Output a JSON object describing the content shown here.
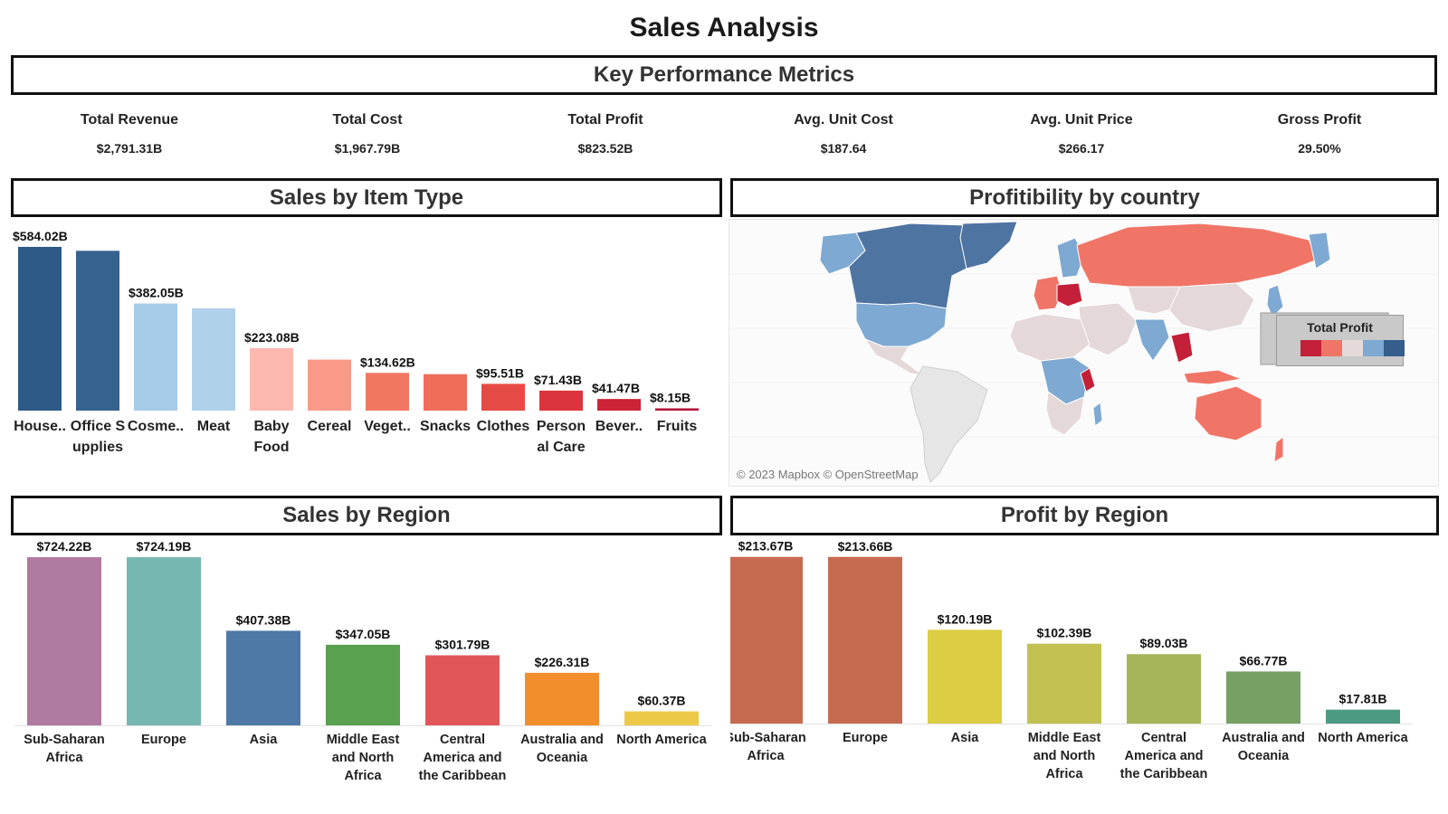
{
  "dashboard": {
    "title": "Sales Analysis"
  },
  "kpi_section": {
    "title": "Key Performance Metrics"
  },
  "kpis": [
    {
      "label": "Total Revenue",
      "value": "$2,791.31B"
    },
    {
      "label": "Total Cost",
      "value": "$1,967.79B"
    },
    {
      "label": "Total Profit",
      "value": "$823.52B"
    },
    {
      "label": "Avg. Unit Cost",
      "value": "$187.64"
    },
    {
      "label": "Avg. Unit Price",
      "value": "$266.17"
    },
    {
      "label": "Gross Profit",
      "value": "29.50%"
    }
  ],
  "map": {
    "title": "Profitibility by country",
    "legend_title": "Total Profit",
    "legend_colors": [
      "#c4203a",
      "#f07567",
      "#e5dad9",
      "#7ea9d2",
      "#355e8c"
    ],
    "credit": "© 2023 Mapbox © OpenStreetMap",
    "colors": {
      "high": "#4e74a1",
      "midhigh": "#7ea9d2",
      "neutral": "#e4d8d8",
      "low": "#f07567",
      "lowest": "#c4203a",
      "nodata": "#e6e6e6"
    }
  },
  "chart_data": [
    {
      "type": "bar",
      "title": "Sales by Item Type",
      "categories": [
        "House..",
        "Office Supplies",
        "Cosme..",
        "Meat",
        "Baby Food",
        "Cereal",
        "Veget..",
        "Snacks",
        "Clothes",
        "Personal Care",
        "Bever..",
        "Fruits"
      ],
      "category_lines": [
        [
          "House.."
        ],
        [
          "Office S",
          "upplies"
        ],
        [
          "Cosme.."
        ],
        [
          "Meat"
        ],
        [
          "Baby",
          "Food"
        ],
        [
          "Cereal"
        ],
        [
          "Veget.."
        ],
        [
          "Snacks"
        ],
        [
          "Clothes"
        ],
        [
          "Person",
          "al Care"
        ],
        [
          "Bever.."
        ],
        [
          "Fruits"
        ]
      ],
      "values": [
        584.02,
        570.0,
        382.05,
        365.0,
        223.08,
        182.0,
        134.62,
        130.0,
        95.51,
        71.43,
        41.47,
        8.15
      ],
      "data_labels": [
        "$584.02B",
        "",
        "$382.05B",
        "",
        "$223.08B",
        "",
        "$134.62B",
        "",
        "$95.51B",
        "$71.43B",
        "$41.47B",
        "$8.15B"
      ],
      "colors": [
        "#2e5a87",
        "#35628f",
        "#a6cbe6",
        "#b0d1ea",
        "#fdb8b0",
        "#f99a88",
        "#f27762",
        "#f06d5c",
        "#e64a44",
        "#dc343c",
        "#cc2336",
        "#b5123a"
      ],
      "ylim": [
        0,
        600
      ]
    },
    {
      "type": "bar",
      "title": "Sales by Region",
      "categories": [
        "Sub-Saharan Africa",
        "Europe",
        "Asia",
        "Middle East and North Africa",
        "Central America and the Caribbean",
        "Australia and Oceania",
        "North America"
      ],
      "category_lines": [
        [
          "Sub-Saharan",
          "Africa"
        ],
        [
          "Europe"
        ],
        [
          "Asia"
        ],
        [
          "Middle East",
          "and North",
          "Africa"
        ],
        [
          "Central",
          "America and",
          "the Caribbean"
        ],
        [
          "Australia and",
          "Oceania"
        ],
        [
          "North America"
        ]
      ],
      "values": [
        724.22,
        724.19,
        407.38,
        347.05,
        301.79,
        226.31,
        60.37
      ],
      "data_labels": [
        "$724.22B",
        "$724.19B",
        "$407.38B",
        "$347.05B",
        "$301.79B",
        "$226.31B",
        "$60.37B"
      ],
      "colors": [
        "#b07aa1",
        "#76b7b2",
        "#4e79a7",
        "#59a14f",
        "#e15759",
        "#f28e2b",
        "#edc948"
      ],
      "ylim": [
        0,
        740
      ]
    },
    {
      "type": "bar",
      "title": "Profit by Region",
      "categories": [
        "Sub-Saharan Africa",
        "Europe",
        "Asia",
        "Middle East and North Africa",
        "Central America and the Caribbean",
        "Australia and Oceania",
        "North America"
      ],
      "category_lines": [
        [
          "Sub-Saharan",
          "Africa"
        ],
        [
          "Europe"
        ],
        [
          "Asia"
        ],
        [
          "Middle East",
          "and North",
          "Africa"
        ],
        [
          "Central",
          "America and",
          "the Caribbean"
        ],
        [
          "Australia and",
          "Oceania"
        ],
        [
          "North America"
        ]
      ],
      "values": [
        213.67,
        213.66,
        120.19,
        102.39,
        89.03,
        66.77,
        17.81
      ],
      "data_labels": [
        "$213.67B",
        "$213.66B",
        "$120.19B",
        "$102.39B",
        "$89.03B",
        "$66.77B",
        "$17.81B"
      ],
      "colors": [
        "#c76b50",
        "#c76b50",
        "#dccd44",
        "#c2c253",
        "#a7b55a",
        "#76a064",
        "#4c9a82"
      ],
      "ylim": [
        0,
        218
      ]
    }
  ]
}
